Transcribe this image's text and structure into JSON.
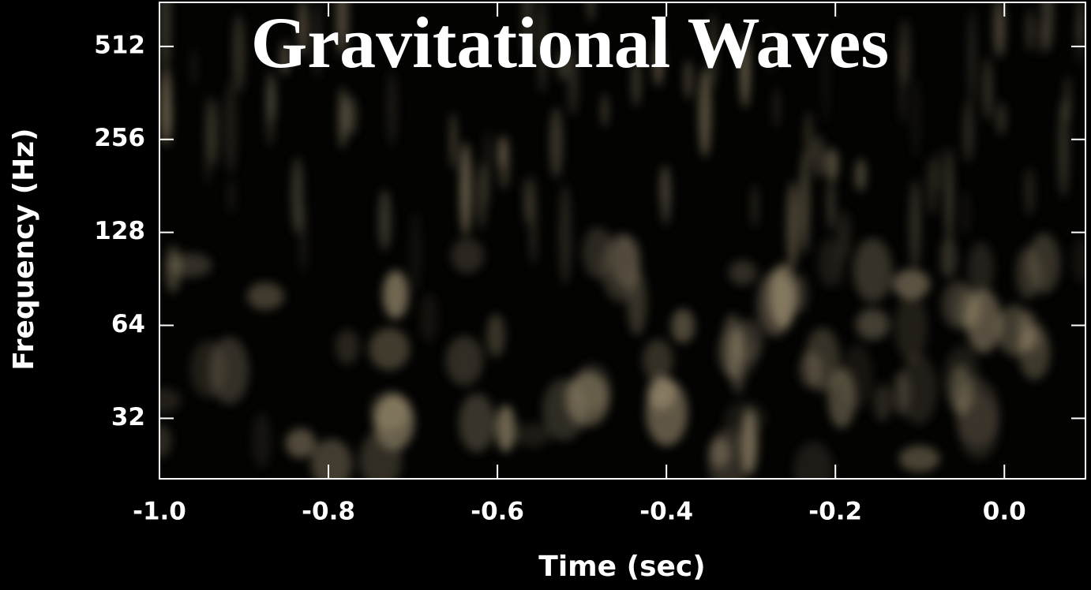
{
  "chart_data": {
    "type": "spectrogram",
    "title": "Gravitational Waves",
    "x_label": "Time (sec)",
    "y_label": "Frequency (Hz)",
    "xlim": [
      -1.0,
      0.096
    ],
    "xticks": [
      {
        "value": -1.0,
        "label": "-1.0"
      },
      -0.8,
      -0.6,
      -0.4,
      -0.2,
      {
        "value": 0,
        "label": "0.0"
      }
    ],
    "ylim": [
      20.4,
      711
    ],
    "yticks": [
      32,
      64,
      128,
      256,
      512
    ],
    "y_log_base": 2
  }
}
